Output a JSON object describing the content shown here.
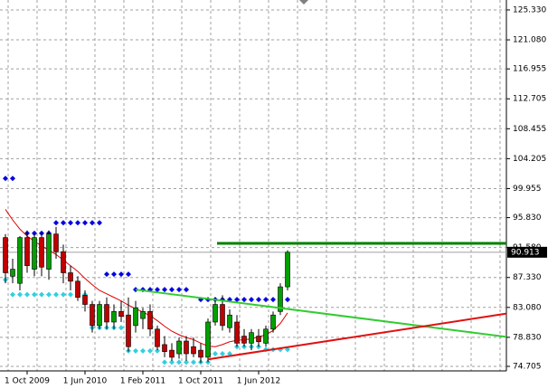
{
  "chart_data": {
    "type": "candlestick",
    "categories": [
      null,
      null,
      null,
      "1 Oct 2009",
      null,
      null,
      null,
      null,
      null,
      null,
      null,
      "1 Jun 2010",
      null,
      null,
      null,
      null,
      null,
      null,
      null,
      "1 Feb 2011",
      null,
      null,
      null,
      null,
      null,
      null,
      null,
      "1 Oct 2011",
      null,
      null,
      null,
      null,
      null,
      null,
      null,
      "1 Jun 2012",
      null,
      null,
      null,
      null
    ],
    "open": [
      93.0,
      87.5,
      86.5,
      93.0,
      88.5,
      93.0,
      88.5,
      93.5,
      91.0,
      88.0,
      86.8,
      84.8,
      83.5,
      80.5,
      83.5,
      81.0,
      82.5,
      82.0,
      80.5,
      81.5,
      82.5,
      80.0,
      77.8,
      77.0,
      76.5,
      78.3,
      77.5,
      77.0,
      76.0,
      81.0,
      83.5,
      80.2,
      81.0,
      79.0,
      78.0,
      79.0,
      78.0,
      80.0,
      82.5,
      86.0
    ],
    "high": [
      93.5,
      90.0,
      93.2,
      94.0,
      93.5,
      93.8,
      94.0,
      94.5,
      92.0,
      89.0,
      87.5,
      85.5,
      84.0,
      84.0,
      84.5,
      83.5,
      84.0,
      84.5,
      84.0,
      83.0,
      83.5,
      80.5,
      79.0,
      78.0,
      78.8,
      79.0,
      78.8,
      78.0,
      81.5,
      84.5,
      84.8,
      82.8,
      82.0,
      80.0,
      80.0,
      80.0,
      80.5,
      82.5,
      86.5,
      91.2
    ],
    "low": [
      86.5,
      86.5,
      85.5,
      88.0,
      87.5,
      87.5,
      87.0,
      90.0,
      86.5,
      85.5,
      84.0,
      82.5,
      79.5,
      80.0,
      80.0,
      80.0,
      81.0,
      76.8,
      79.5,
      80.0,
      79.0,
      77.0,
      76.0,
      75.5,
      75.8,
      75.5,
      76.0,
      75.2,
      75.3,
      80.5,
      79.8,
      79.5,
      77.5,
      77.5,
      77.0,
      77.5,
      77.5,
      79.5,
      82.0,
      85.5
    ],
    "close": [
      88.0,
      88.5,
      93.0,
      89.0,
      93.0,
      88.8,
      93.5,
      91.0,
      88.0,
      86.8,
      84.5,
      83.5,
      80.5,
      83.5,
      81.0,
      82.5,
      81.8,
      77.5,
      83.0,
      82.5,
      80.0,
      77.5,
      76.8,
      76.0,
      78.3,
      76.5,
      76.5,
      76.0,
      81.0,
      83.5,
      80.5,
      82.0,
      78.0,
      78.0,
      79.5,
      78.2,
      80.0,
      82.0,
      86.0,
      90.913
    ],
    "up_color": "#00a000",
    "down_color": "#c00000",
    "moving_average": {
      "color": "#dd0000",
      "values": [
        97.0,
        95.5,
        94.2,
        93.2,
        92.5,
        91.8,
        91.2,
        90.6,
        89.8,
        89.0,
        88.2,
        87.2,
        86.3,
        85.5,
        85.0,
        84.5,
        84.0,
        83.4,
        82.9,
        82.4,
        81.9,
        81.2,
        80.4,
        79.7,
        79.2,
        78.8,
        78.5,
        78.0,
        77.6,
        77.5,
        77.8,
        78.2,
        78.4,
        78.5,
        78.6,
        78.9,
        79.2,
        79.8,
        80.8,
        82.3
      ]
    },
    "dots": [
      {
        "color": "#0000e0",
        "values": [
          101.4,
          101.4,
          null,
          93.6,
          93.6,
          93.6,
          93.6,
          95.1,
          95.1,
          95.1,
          95.1,
          95.1,
          95.1,
          95.1,
          87.8,
          87.8,
          87.8,
          87.8,
          85.6,
          85.6,
          85.6,
          85.6,
          85.6,
          85.6,
          85.6,
          85.6,
          null,
          84.2,
          84.2,
          84.2,
          84.2,
          84.2,
          84.2,
          84.2,
          84.2,
          84.2,
          84.2,
          84.2,
          84.2,
          84.2
        ]
      },
      {
        "color": "#30d0e0",
        "values": [
          87.0,
          84.9,
          84.9,
          84.9,
          84.9,
          84.9,
          84.9,
          84.9,
          84.9,
          84.9,
          84.9,
          84.9,
          80.2,
          80.2,
          80.2,
          80.2,
          80.2,
          76.9,
          76.9,
          76.9,
          76.9,
          76.9,
          75.3,
          75.3,
          75.3,
          75.3,
          75.3,
          75.3,
          75.3,
          76.5,
          76.5,
          76.5,
          77.5,
          77.5,
          77.5,
          77.5,
          77.1,
          77.1,
          77.1,
          77.1
        ]
      }
    ],
    "trendlines": [
      {
        "color": "#008000",
        "x": [
          29.25,
          69.25
        ],
        "y": [
          92.18,
          92.18
        ]
      },
      {
        "color": "#33cc33",
        "x": [
          18,
          69.25
        ],
        "y": [
          85.6,
          78.9
        ]
      },
      {
        "color": "#e01010",
        "x": [
          28,
          69.25
        ],
        "y": [
          75.7,
          82.2
        ]
      }
    ],
    "last_price": 90.913,
    "xlim": [
      -0.75,
      69.25
    ],
    "ylim": [
      74.06,
      126.74
    ],
    "yticks": [
      {
        "value": 125.33,
        "label": "125.330"
      },
      {
        "value": 121.08,
        "label": "121.080"
      },
      116.955,
      112.705,
      108.455,
      104.205,
      99.955,
      {
        "value": 95.83,
        "label": "95.830"
      },
      {
        "value": 91.58,
        "label": "91.580"
      },
      {
        "value": 87.33,
        "label": "87.330"
      },
      {
        "value": 83.08,
        "label": "83.080"
      },
      {
        "value": 78.83,
        "label": "78.830"
      },
      74.705
    ],
    "grid": true
  }
}
